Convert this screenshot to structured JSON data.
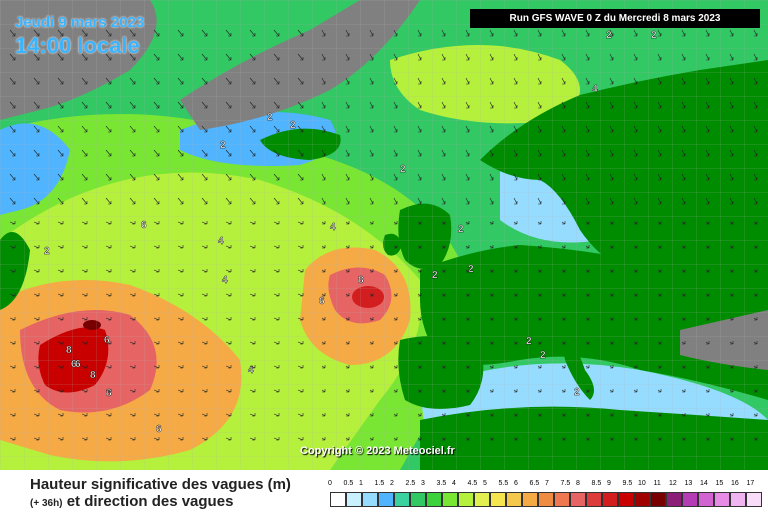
{
  "header": {
    "date": "Jeudi 9 mars 2023",
    "time": "14:00 locale",
    "run": "Run GFS WAVE 0 Z du Mercredi 8 mars 2023"
  },
  "copyright": "Copyright © 2023 Meteociel.fr",
  "legend": {
    "title": "Hauteur significative des vagues (m)",
    "lead": "(+ 36h)",
    "subtitle": "et direction des vagues",
    "ticks": [
      "0",
      "0.5",
      "1",
      "1.5",
      "2",
      "2.5",
      "3",
      "3.5",
      "4",
      "4.5",
      "5",
      "5.5",
      "6",
      "6.5",
      "7",
      "7.5",
      "8",
      "8.5",
      "9",
      "9.5",
      "10",
      "11",
      "12",
      "13",
      "14",
      "15",
      "16",
      "17"
    ],
    "colors": [
      "#ffffff",
      "#c8f0ff",
      "#96dcff",
      "#50b4ff",
      "#3cd2a0",
      "#32c864",
      "#3cd23c",
      "#78e632",
      "#b4f03c",
      "#e1f050",
      "#f5e650",
      "#f5c84b",
      "#f5aa46",
      "#f08c41",
      "#f07850",
      "#e66464",
      "#dc3c3c",
      "#d21e1e",
      "#c80000",
      "#a00000",
      "#780000",
      "#8c1e78",
      "#b43cb4",
      "#d264d2",
      "#e68ce6",
      "#f0b4f0",
      "#f8dcf8"
    ]
  },
  "map_labels": [
    {
      "text": "2"
    },
    {
      "text": "2"
    },
    {
      "text": "2"
    },
    {
      "text": "4"
    },
    {
      "text": "2"
    },
    {
      "text": "2"
    },
    {
      "text": "2"
    },
    {
      "text": "2"
    },
    {
      "text": "6"
    },
    {
      "text": "4"
    },
    {
      "text": "4"
    },
    {
      "text": "2"
    },
    {
      "text": "2"
    },
    {
      "text": "2"
    },
    {
      "text": "8"
    },
    {
      "text": "6"
    },
    {
      "text": "6"
    },
    {
      "text": "6"
    },
    {
      "text": "8"
    },
    {
      "text": "6"
    },
    {
      "text": "8"
    },
    {
      "text": "8"
    },
    {
      "text": "4"
    },
    {
      "text": "6"
    },
    {
      "text": "2"
    },
    {
      "text": "2"
    },
    {
      "text": "2"
    },
    {
      "text": "4"
    }
  ]
}
